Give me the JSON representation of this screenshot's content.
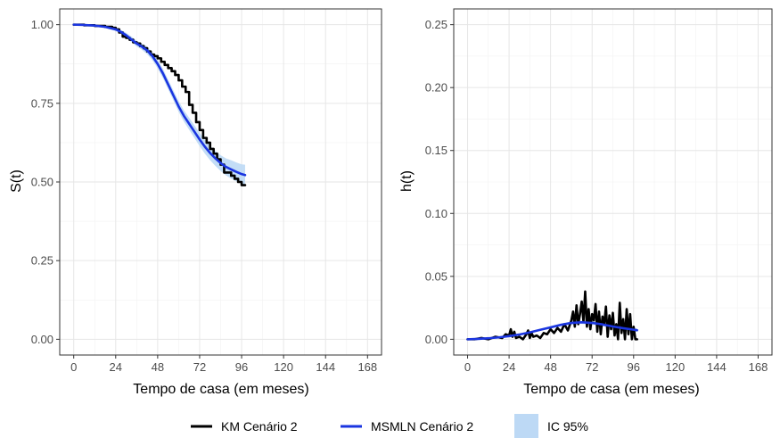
{
  "chart_data": [
    {
      "type": "line",
      "panel": "left",
      "xlabel": "Tempo de casa (em meses)",
      "ylabel": "S(t)",
      "xlim": [
        -8,
        176
      ],
      "ylim": [
        -0.05,
        1.05
      ],
      "x_ticks": [
        0,
        24,
        48,
        72,
        96,
        120,
        144,
        168
      ],
      "x_tick_labels": [
        "0",
        "24",
        "48",
        "72",
        "96",
        "120",
        "144",
        "168"
      ],
      "y_ticks": [
        0,
        0.25,
        0.5,
        0.75,
        1
      ],
      "y_tick_labels": [
        "0.00",
        "0.25",
        "0.50",
        "0.75",
        "1.00"
      ],
      "grid": true,
      "series": [
        {
          "name": "KM Cenário 2",
          "color": "#000000",
          "style": "step",
          "x": [
            0,
            6,
            12,
            18,
            22,
            24,
            26,
            28,
            30,
            32,
            34,
            36,
            38,
            40,
            42,
            44,
            46,
            48,
            50,
            52,
            54,
            56,
            58,
            60,
            62,
            64,
            66,
            68,
            70,
            72,
            74,
            76,
            78,
            80,
            82,
            84,
            86,
            88,
            90,
            92,
            94,
            96,
            98
          ],
          "y": [
            1.0,
            0.998,
            0.996,
            0.993,
            0.99,
            0.985,
            0.975,
            0.962,
            0.958,
            0.952,
            0.944,
            0.94,
            0.932,
            0.925,
            0.915,
            0.905,
            0.9,
            0.893,
            0.882,
            0.872,
            0.862,
            0.852,
            0.84,
            0.823,
            0.803,
            0.786,
            0.745,
            0.72,
            0.69,
            0.665,
            0.64,
            0.625,
            0.605,
            0.59,
            0.572,
            0.555,
            0.53,
            0.53,
            0.52,
            0.51,
            0.5,
            0.49,
            0.49
          ]
        },
        {
          "name": "MSMLN Cenário 2",
          "color": "#1a35e0",
          "x": [
            0,
            6,
            12,
            18,
            24,
            27,
            30,
            33,
            36,
            39,
            42,
            45,
            48,
            51,
            54,
            57,
            60,
            63,
            66,
            69,
            72,
            75,
            78,
            81,
            84,
            87,
            90,
            93,
            96,
            98
          ],
          "y": [
            1.0,
            0.999,
            0.997,
            0.993,
            0.985,
            0.977,
            0.966,
            0.953,
            0.94,
            0.93,
            0.918,
            0.9,
            0.875,
            0.845,
            0.81,
            0.775,
            0.74,
            0.71,
            0.685,
            0.66,
            0.635,
            0.612,
            0.592,
            0.575,
            0.56,
            0.548,
            0.54,
            0.532,
            0.525,
            0.522
          ]
        }
      ],
      "band": {
        "name": "IC 95%",
        "color": "#bdd9f5",
        "x": [
          0,
          6,
          12,
          18,
          24,
          27,
          30,
          33,
          36,
          39,
          42,
          45,
          48,
          51,
          54,
          57,
          60,
          63,
          66,
          69,
          72,
          75,
          78,
          81,
          84,
          87,
          90,
          93,
          96,
          98
        ],
        "lower": [
          0.998,
          0.996,
          0.994,
          0.989,
          0.98,
          0.971,
          0.958,
          0.944,
          0.931,
          0.92,
          0.906,
          0.887,
          0.861,
          0.83,
          0.795,
          0.759,
          0.723,
          0.692,
          0.666,
          0.64,
          0.614,
          0.59,
          0.569,
          0.551,
          0.535,
          0.521,
          0.511,
          0.502,
          0.494,
          0.489
        ],
        "upper": [
          1.0,
          1.0,
          1.0,
          0.997,
          0.99,
          0.983,
          0.974,
          0.962,
          0.949,
          0.94,
          0.93,
          0.913,
          0.889,
          0.86,
          0.825,
          0.791,
          0.757,
          0.728,
          0.704,
          0.68,
          0.656,
          0.634,
          0.615,
          0.599,
          0.585,
          0.575,
          0.569,
          0.562,
          0.556,
          0.555
        ]
      }
    },
    {
      "type": "line",
      "panel": "right",
      "xlabel": "Tempo de casa (em meses)",
      "ylabel": "h(t)",
      "xlim": [
        -8,
        176
      ],
      "ylim": [
        -0.0125,
        0.2625
      ],
      "x_ticks": [
        0,
        24,
        48,
        72,
        96,
        120,
        144,
        168
      ],
      "x_tick_labels": [
        "0",
        "24",
        "48",
        "72",
        "96",
        "120",
        "144",
        "168"
      ],
      "y_ticks": [
        0,
        0.05,
        0.1,
        0.15,
        0.2,
        0.25
      ],
      "y_tick_labels": [
        "0.00",
        "0.05",
        "0.10",
        "0.15",
        "0.20",
        "0.25"
      ],
      "grid": true,
      "series": [
        {
          "name": "KM Cenário 2",
          "color": "#000000",
          "x": [
            0,
            4,
            8,
            12,
            16,
            20,
            22,
            24,
            25,
            26,
            27,
            28,
            30,
            32,
            34,
            35,
            36,
            37,
            38,
            40,
            42,
            44,
            46,
            48,
            50,
            52,
            54,
            56,
            58,
            60,
            61,
            62,
            63,
            64,
            65,
            66,
            67,
            68,
            69,
            70,
            71,
            72,
            73,
            74,
            75,
            76,
            77,
            78,
            79,
            80,
            81,
            82,
            83,
            84,
            85,
            86,
            87,
            88,
            89,
            90,
            91,
            92,
            93,
            94,
            95,
            96,
            97,
            98
          ],
          "y": [
            0.0,
            0.0,
            0.001,
            0.0,
            0.002,
            0.001,
            0.004,
            0.003,
            0.008,
            0.002,
            0.006,
            0.001,
            0.002,
            0.0,
            0.004,
            0.007,
            0.001,
            0.005,
            0.002,
            0.003,
            0.001,
            0.005,
            0.004,
            0.008,
            0.005,
            0.009,
            0.006,
            0.012,
            0.007,
            0.015,
            0.022,
            0.01,
            0.027,
            0.012,
            0.02,
            0.03,
            0.014,
            0.038,
            0.01,
            0.024,
            0.008,
            0.02,
            0.015,
            0.028,
            0.006,
            0.022,
            0.004,
            0.018,
            0.012,
            0.026,
            0.002,
            0.019,
            0.008,
            0.021,
            0.003,
            0.012,
            0.0,
            0.029,
            0.005,
            0.016,
            0.0,
            0.024,
            0.004,
            0.02,
            0.0,
            0.01,
            0.0,
            0.0
          ]
        },
        {
          "name": "MSMLN Cenário 2",
          "color": "#1a35e0",
          "x": [
            0,
            6,
            12,
            18,
            24,
            30,
            36,
            42,
            48,
            54,
            60,
            66,
            72,
            78,
            84,
            90,
            96,
            98
          ],
          "y": [
            0.0,
            0.0003,
            0.0008,
            0.0015,
            0.0025,
            0.0038,
            0.0055,
            0.0075,
            0.0095,
            0.0115,
            0.013,
            0.0135,
            0.013,
            0.0118,
            0.0102,
            0.0088,
            0.0076,
            0.0072
          ]
        }
      ],
      "band": {
        "name": "IC 95%",
        "color": "#bdd9f5",
        "x": [
          0,
          6,
          12,
          18,
          24,
          30,
          36,
          42,
          48,
          54,
          60,
          66,
          72,
          78,
          84,
          90,
          96,
          98
        ],
        "lower": [
          0.0,
          0.0002,
          0.0006,
          0.0012,
          0.002,
          0.0032,
          0.0048,
          0.0067,
          0.0085,
          0.0104,
          0.0118,
          0.0122,
          0.0116,
          0.0104,
          0.0088,
          0.0074,
          0.0062,
          0.0058
        ],
        "upper": [
          0.0002,
          0.0005,
          0.001,
          0.0019,
          0.003,
          0.0044,
          0.0062,
          0.0083,
          0.0105,
          0.0126,
          0.0142,
          0.0148,
          0.0144,
          0.0132,
          0.0116,
          0.0102,
          0.009,
          0.0086
        ]
      }
    }
  ],
  "legend": {
    "position": "bottom",
    "items": [
      {
        "label": "KM Cenário 2",
        "color": "#000000",
        "kind": "line"
      },
      {
        "label": "MSMLN Cenário 2",
        "color": "#1a35e0",
        "kind": "line"
      },
      {
        "label": "IC 95%",
        "color": "#bdd9f5",
        "kind": "fill"
      }
    ]
  }
}
